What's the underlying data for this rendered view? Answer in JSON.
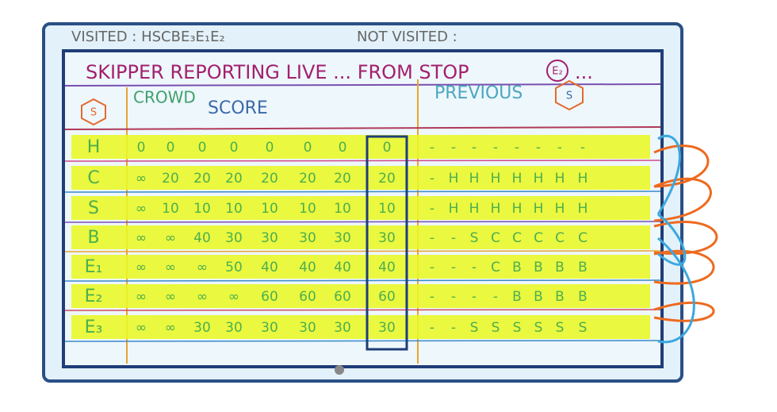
{
  "header": {
    "visited": "VISITED : HSCBE₃E₁E₂",
    "not_visited": "NOT VISITED :",
    "title": "SKIPPER REPORTING LIVE ... FROM STOP",
    "stop": "E₂",
    "title_end": "..."
  },
  "table": {
    "icon_left": "S",
    "crowd": "CROWD",
    "score": "SCORE",
    "previous": "PREVIOUS",
    "icon_right": "S",
    "rows": [
      {
        "label": "H",
        "scores": [
          "0",
          "0",
          "0",
          "0",
          "0",
          "0",
          "0",
          "0"
        ],
        "previous": [
          "-",
          "-",
          "-",
          "-",
          "-",
          "-",
          "-",
          "-"
        ]
      },
      {
        "label": "C",
        "scores": [
          "∞",
          "20",
          "20",
          "20",
          "20",
          "20",
          "20",
          "20"
        ],
        "previous": [
          "-",
          "H",
          "H",
          "H",
          "H",
          "H",
          "H",
          "H"
        ]
      },
      {
        "label": "S",
        "scores": [
          "∞",
          "10",
          "10",
          "10",
          "10",
          "10",
          "10",
          "10"
        ],
        "previous": [
          "-",
          "H",
          "H",
          "H",
          "H",
          "H",
          "H",
          "H"
        ]
      },
      {
        "label": "B",
        "scores": [
          "∞",
          "∞",
          "40",
          "30",
          "30",
          "30",
          "30",
          "30"
        ],
        "previous": [
          "-",
          "-",
          "S",
          "C",
          "C",
          "C",
          "C",
          "C"
        ]
      },
      {
        "label": "E₁",
        "scores": [
          "∞",
          "∞",
          "∞",
          "50",
          "40",
          "40",
          "40",
          "40"
        ],
        "previous": [
          "-",
          "-",
          "-",
          "C",
          "B",
          "B",
          "B",
          "B"
        ]
      },
      {
        "label": "E₂",
        "scores": [
          "∞",
          "∞",
          "∞",
          "∞",
          "60",
          "60",
          "60",
          "60"
        ],
        "previous": [
          "-",
          "-",
          "-",
          "-",
          "B",
          "B",
          "B",
          "B"
        ]
      },
      {
        "label": "E₃",
        "scores": [
          "∞",
          "∞",
          "30",
          "30",
          "30",
          "30",
          "30",
          "30"
        ],
        "previous": [
          "-",
          "-",
          "S",
          "S",
          "S",
          "S",
          "S",
          "S"
        ]
      }
    ]
  }
}
